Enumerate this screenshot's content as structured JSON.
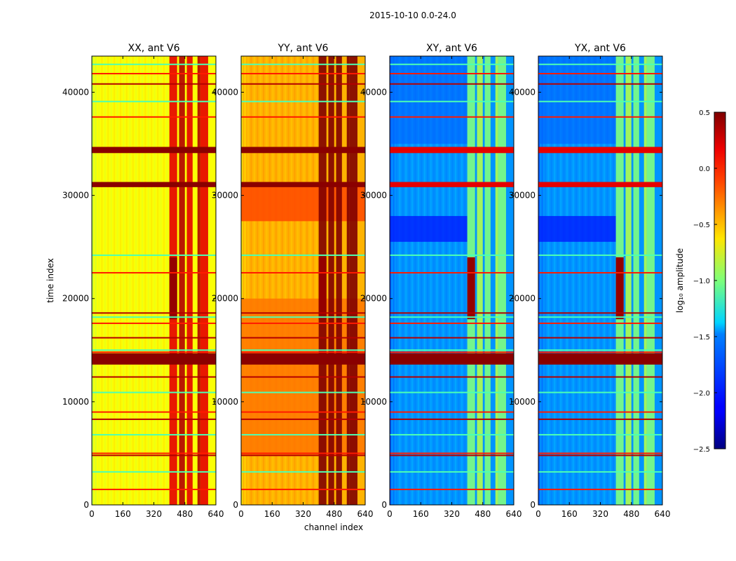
{
  "chart_data": {
    "type": "heatmap",
    "title": "2015-10-10 0.0-24.0",
    "xlabel": "channel index",
    "ylabel": "time index",
    "xlim": [
      0,
      640
    ],
    "ylim": [
      0,
      43500
    ],
    "x_ticks": [
      "0",
      "160",
      "320",
      "480",
      "640"
    ],
    "y_ticks": [
      "0",
      "10000",
      "20000",
      "30000",
      "40000"
    ],
    "panels": [
      {
        "title": "XX, ant V6",
        "baseline": 0.62,
        "band_shift": 0.0
      },
      {
        "title": "YY, ant V6",
        "baseline": 0.7,
        "band_shift": 0.04
      },
      {
        "title": "XY, ant V6",
        "baseline": 0.27,
        "band_shift": -0.05
      },
      {
        "title": "YX, ant V6",
        "baseline": 0.27,
        "band_shift": -0.05
      }
    ],
    "colorbar": {
      "label": "log₁₀ amplitude",
      "colormap": "jet",
      "range": [
        -2.5,
        0.5
      ],
      "ticks": [
        "0.5",
        "0.0",
        "−0.5",
        "−1.0",
        "−1.5",
        "−2.0",
        "−2.5"
      ]
    },
    "rfi_channel_ranges": [
      [
        400,
        440
      ],
      [
        450,
        480
      ],
      [
        490,
        520
      ],
      [
        545,
        560
      ],
      [
        560,
        600
      ]
    ],
    "flagged_time_rows": [
      1500,
      3200,
      4800,
      5000,
      6800,
      8300,
      9000,
      10900,
      12400,
      13700,
      14000,
      14300,
      14800,
      15000,
      16200,
      17600,
      18200,
      18600,
      22500,
      24200,
      30900,
      31200,
      34200,
      34600,
      37600,
      39100,
      40800,
      41800,
      42700
    ]
  }
}
